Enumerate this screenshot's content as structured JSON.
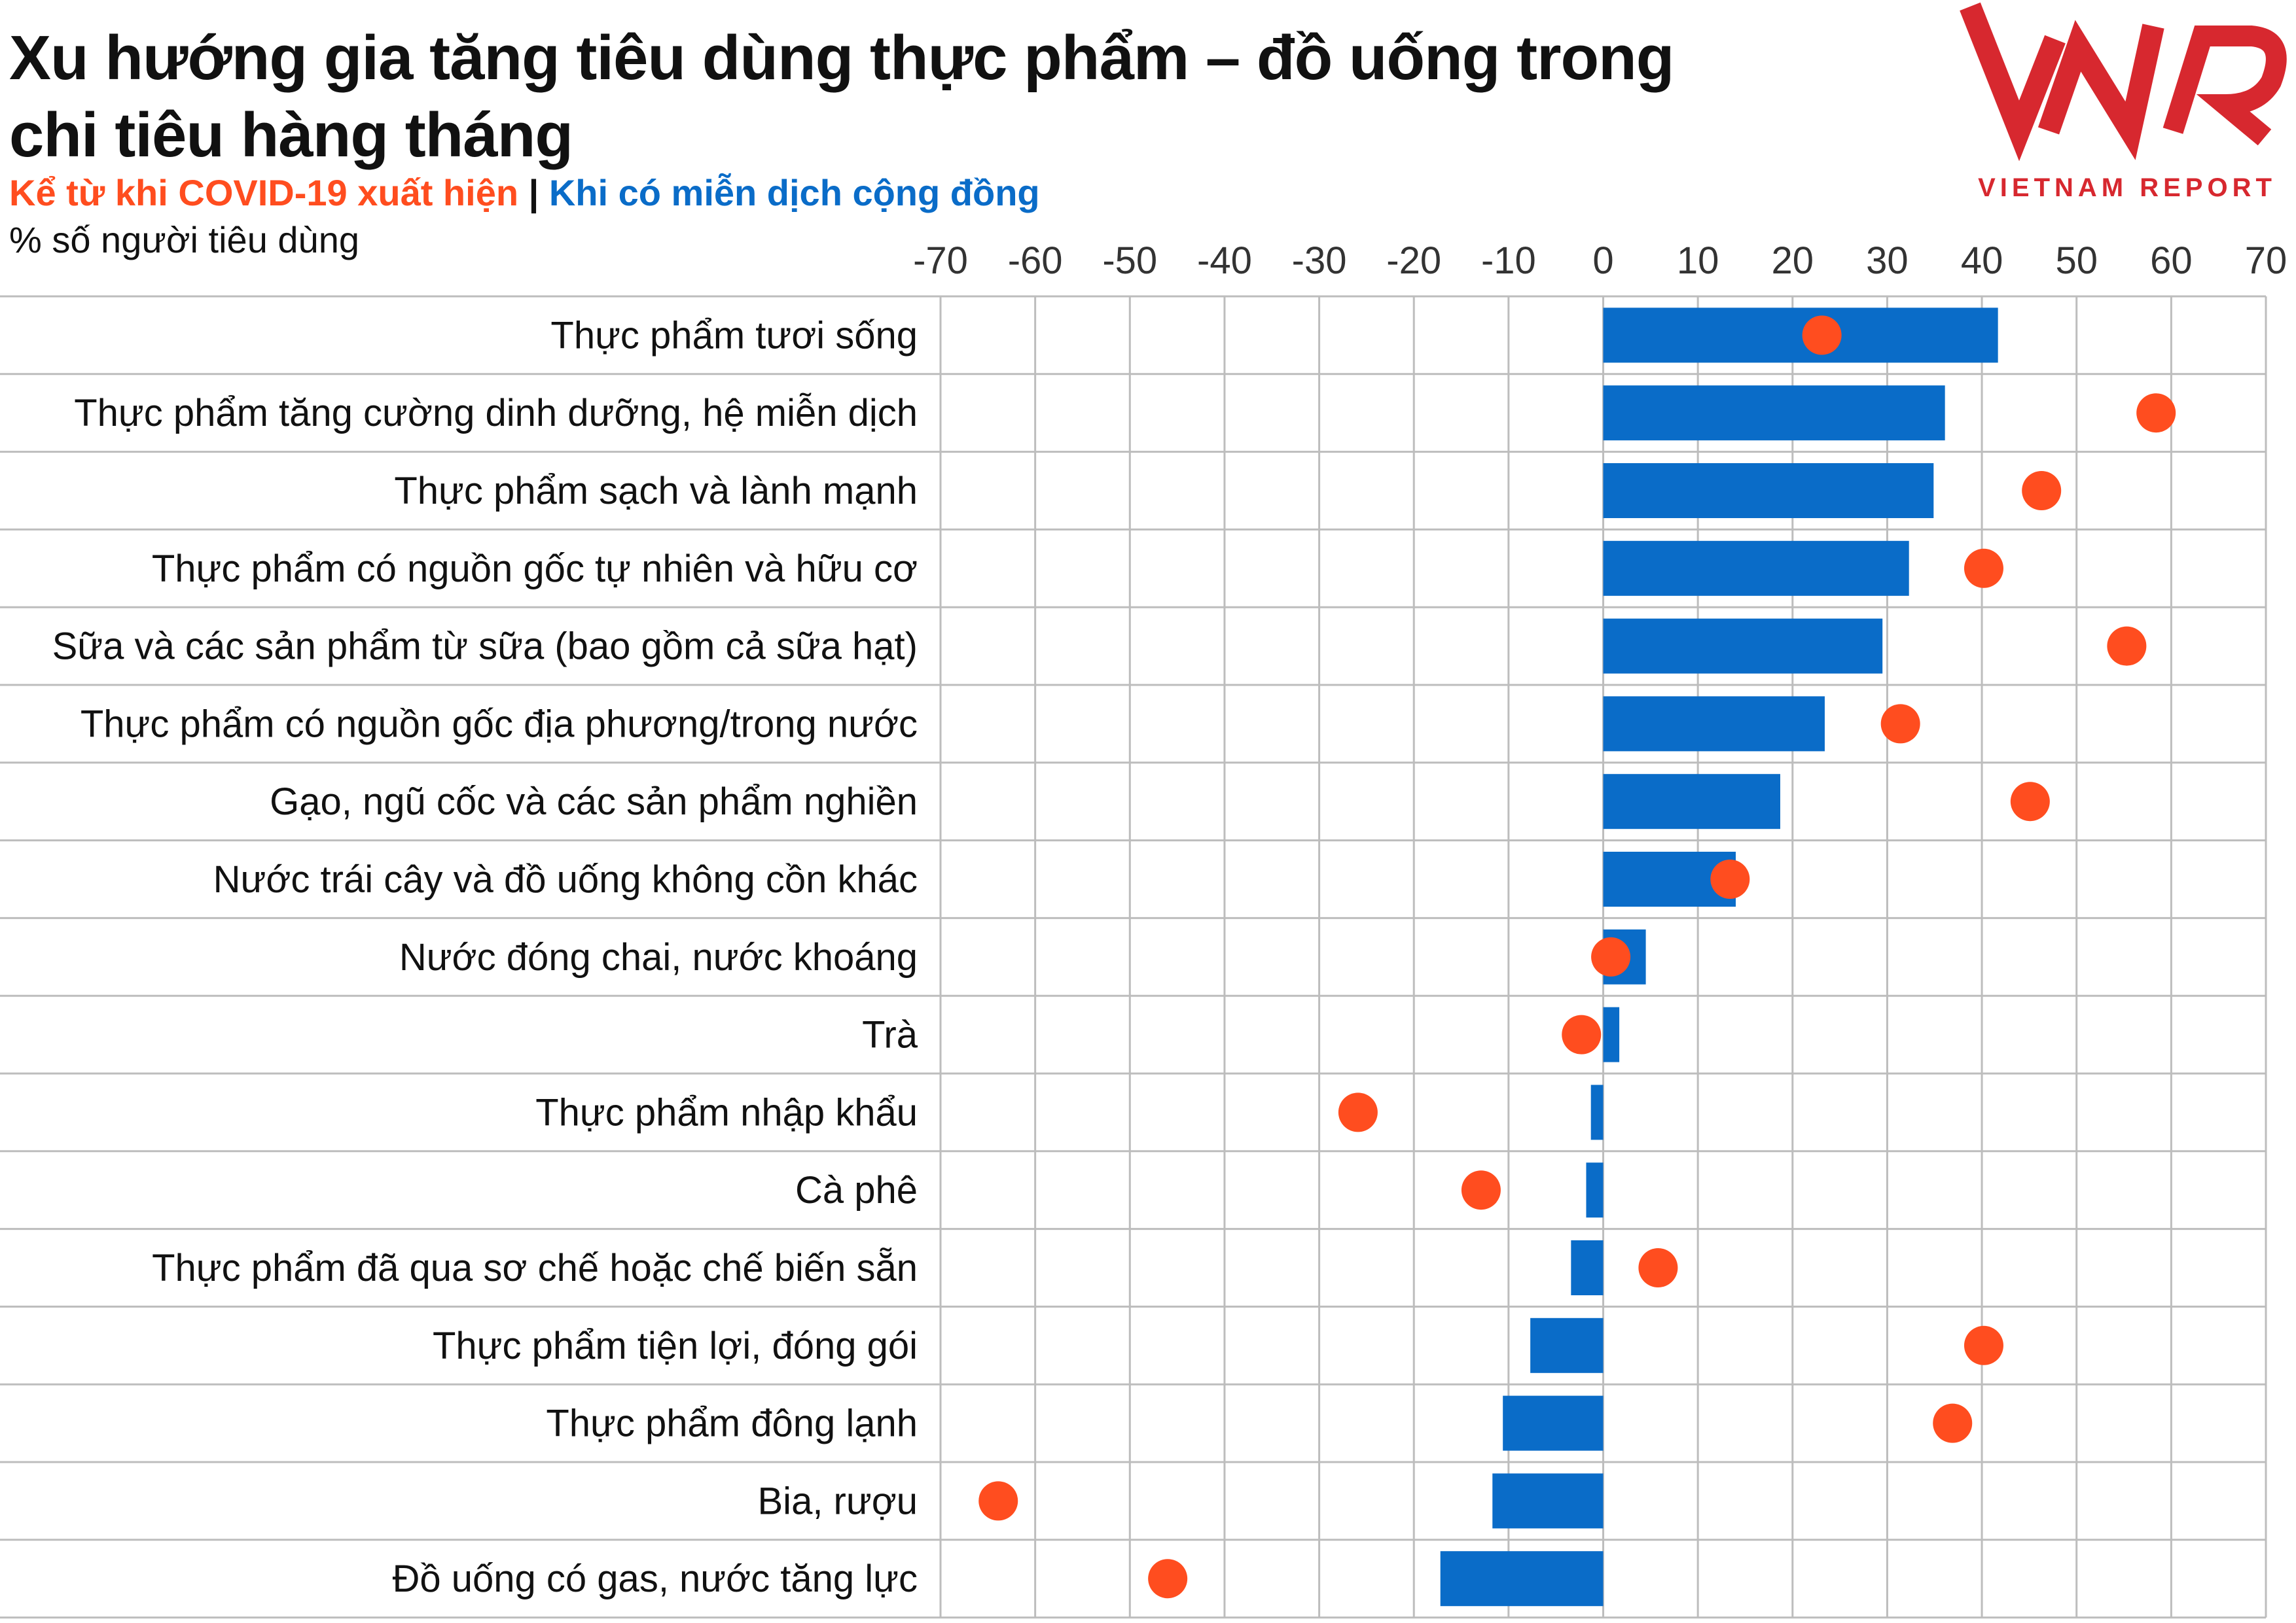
{
  "header": {
    "title": "Xu hướng gia tăng tiêu dùng thực phẩm – đồ uống trong chi tiêu hàng tháng",
    "legend_covid": "Kể từ khi COVID-19 xuất hiện",
    "legend_separator": "|",
    "legend_immunity": "Khi có miễn dịch cộng đồng",
    "unit_label": "% số người tiêu dùng"
  },
  "logo": {
    "caption": "VIETNAM REPORT"
  },
  "colors": {
    "bar": "#0A6CC8",
    "dot": "#FF4D1F",
    "covid_text": "#FF4D1F",
    "immunity_text": "#0A6CC8",
    "logo_red": "#D7282F",
    "grid": "#BDBDBD"
  },
  "chart_data": {
    "type": "bar",
    "orientation": "horizontal",
    "title": "Xu hướng gia tăng tiêu dùng thực phẩm – đồ uống trong chi tiêu hàng tháng",
    "subtitle": "% số người tiêu dùng",
    "xlim": [
      -70,
      70
    ],
    "xticks": [
      -70,
      -60,
      -50,
      -40,
      -30,
      -20,
      -10,
      0,
      10,
      20,
      30,
      40,
      50,
      60,
      70
    ],
    "xtick_position": "top",
    "grid": true,
    "categories": [
      "Thực phẩm tươi sống",
      "Thực phẩm tăng cường dinh dưỡng, hệ miễn dịch",
      "Thực phẩm sạch và lành mạnh",
      "Thực phẩm có nguồn gốc tự nhiên và hữu cơ",
      "Sữa và các sản phẩm từ sữa (bao gồm cả sữa hạt)",
      "Thực phẩm có nguồn gốc địa phương/trong nước",
      "Gạo, ngũ cốc và các sản phẩm nghiền",
      "Nước trái cây và đồ uống không cồn khác",
      "Nước đóng chai, nước khoáng",
      "Trà",
      "Thực phẩm nhập khẩu",
      "Cà phê",
      "Thực phẩm đã qua sơ chế hoặc chế biến sẵn",
      "Thực phẩm tiện lợi, đóng gói",
      "Thực phẩm đông lạnh",
      "Bia, rượu",
      "Đồ uống có gas, nước tăng lực"
    ],
    "series": [
      {
        "name": "Khi có miễn dịch cộng đồng",
        "style": "bar",
        "values": [
          41.7,
          36.1,
          34.9,
          32.3,
          29.5,
          23.4,
          18.7,
          14,
          4.5,
          1.7,
          -1.3,
          -1.8,
          -3.4,
          -7.7,
          -10.6,
          -11.7,
          -17.2
        ]
      },
      {
        "name": "Kể từ khi COVID-19 xuất hiện",
        "style": "dot",
        "values": [
          23.1,
          58.4,
          46.3,
          40.2,
          55.3,
          31.4,
          45.1,
          13.4,
          0.8,
          -2.3,
          -25.9,
          -12.9,
          5.8,
          40.2,
          36.9,
          -63.9,
          -46
        ]
      }
    ]
  }
}
